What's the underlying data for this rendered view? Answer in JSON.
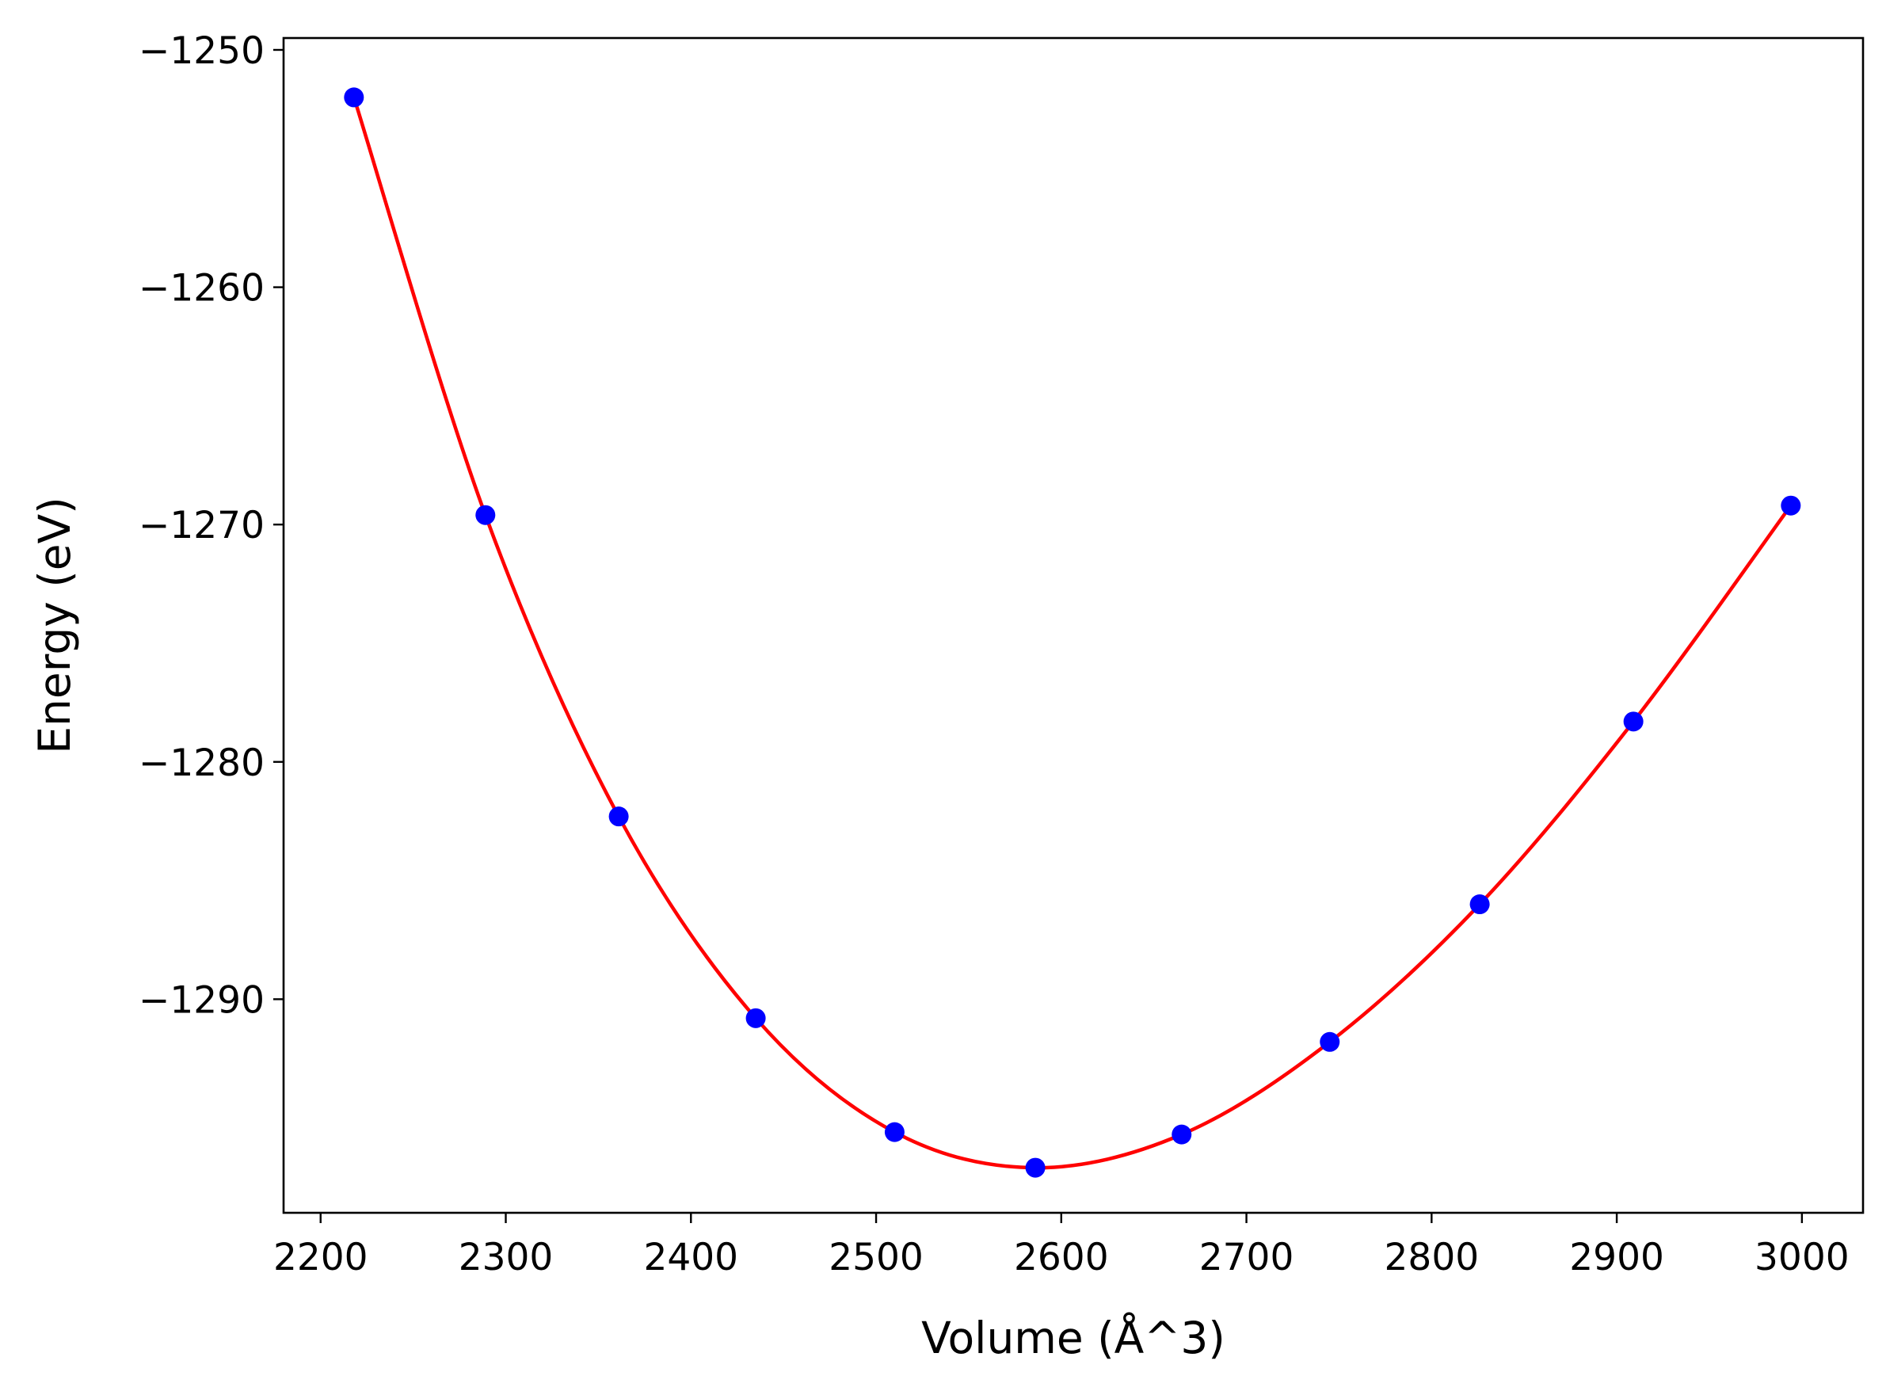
{
  "chart_data": {
    "type": "scatter",
    "xlabel": "Volume (Å^3)",
    "ylabel": "Energy (eV)",
    "xlim": [
      2180,
      3033
    ],
    "ylim": [
      -1299.0,
      -1249.5
    ],
    "x_ticks": [
      2200,
      2300,
      2400,
      2500,
      2600,
      2700,
      2800,
      2900,
      3000
    ],
    "x_tick_labels": [
      "2200",
      "2300",
      "2400",
      "2500",
      "2600",
      "2700",
      "2800",
      "2900",
      "3000"
    ],
    "y_ticks": [
      -1250,
      -1260,
      -1270,
      -1280,
      -1290
    ],
    "y_tick_labels": [
      "−1250",
      "−1260",
      "−1270",
      "−1280",
      "−1290"
    ],
    "grid": false,
    "series": [
      {
        "kind": "scatter",
        "color": "#0000ff",
        "x": [
          2218,
          2289,
          2361,
          2435,
          2510,
          2586,
          2665,
          2745,
          2826,
          2909,
          2994
        ],
        "y": [
          -1252.0,
          -1269.6,
          -1282.3,
          -1290.8,
          -1295.6,
          -1297.1,
          -1295.7,
          -1291.8,
          -1286.0,
          -1278.3,
          -1269.2
        ]
      },
      {
        "kind": "line",
        "color": "#ff0000",
        "x": [
          2218,
          2289,
          2361,
          2435,
          2510,
          2586,
          2665,
          2745,
          2826,
          2909,
          2994
        ],
        "y": [
          -1252.0,
          -1269.6,
          -1282.3,
          -1290.8,
          -1295.6,
          -1297.1,
          -1295.7,
          -1291.8,
          -1286.0,
          -1278.3,
          -1269.2
        ]
      }
    ]
  }
}
